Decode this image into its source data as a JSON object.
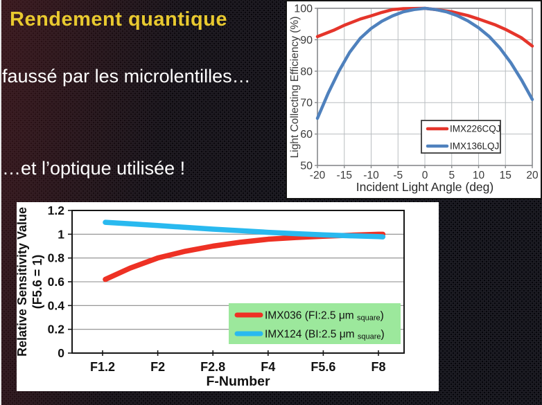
{
  "slide": {
    "title": "Rendement quantique",
    "title_color": "#e8c92f",
    "line1": "faussé par les microlentilles…",
    "line2": "…et l’optique utilisée !",
    "text_color": "#ffffff"
  },
  "chart_data": [
    {
      "id": "light-collecting-efficiency",
      "type": "line",
      "xlabel": "Incident Light Angle (deg)",
      "ylabel": "Light Collecting Efficiency (%)",
      "xlim": [
        -20,
        20
      ],
      "ylim": [
        50,
        100
      ],
      "xtick_values": [
        -20,
        -15,
        -10,
        -5,
        0,
        5,
        10,
        15,
        20
      ],
      "xtick_labels": [
        "-20",
        "-15",
        "-10",
        "-5",
        "0",
        "5",
        "10",
        "15",
        "20"
      ],
      "ytick_values": [
        50,
        60,
        70,
        80,
        90,
        100
      ],
      "ytick_labels": [
        "50",
        "60",
        "70",
        "80",
        "90",
        "100"
      ],
      "grid": true,
      "grid_color": "#b9bdc0",
      "frame_color": "#87898c",
      "label_color": "#3b3b3b",
      "legend": {
        "position": "inside-bottom-right",
        "bg": "#ffffff",
        "border": "#3a3a3a"
      },
      "series": [
        {
          "name": "IMX226CQJ",
          "color": "#e5352b",
          "points": [
            [
              -20,
              91
            ],
            [
              -17,
              93
            ],
            [
              -15,
              94.6
            ],
            [
              -12,
              96.6
            ],
            [
              -10,
              97.6
            ],
            [
              -8,
              98.7
            ],
            [
              -6,
              99.6
            ],
            [
              -4,
              99.9
            ],
            [
              0,
              100
            ],
            [
              3,
              99.4
            ],
            [
              5,
              98.9
            ],
            [
              8,
              97.7
            ],
            [
              10,
              96.6
            ],
            [
              13,
              94.8
            ],
            [
              15,
              93.3
            ],
            [
              18,
              90.6
            ],
            [
              20,
              88
            ]
          ]
        },
        {
          "name": "IMX136LQJ",
          "color": "#4f81bd",
          "points": [
            [
              -20,
              65
            ],
            [
              -18,
              73
            ],
            [
              -16,
              80
            ],
            [
              -14,
              86
            ],
            [
              -12,
              90.5
            ],
            [
              -10,
              93.6
            ],
            [
              -8,
              95.9
            ],
            [
              -6,
              97.6
            ],
            [
              -4,
              98.9
            ],
            [
              -2,
              99.6
            ],
            [
              0,
              100
            ],
            [
              2,
              99.6
            ],
            [
              4,
              98.9
            ],
            [
              6,
              97.7
            ],
            [
              8,
              96
            ],
            [
              10,
              93.8
            ],
            [
              12,
              91
            ],
            [
              14,
              87.3
            ],
            [
              16,
              82.7
            ],
            [
              18,
              77.2
            ],
            [
              20,
              71
            ]
          ]
        }
      ]
    },
    {
      "id": "relative-sensitivity",
      "type": "line",
      "xlabel": "F-Number",
      "ylabel": "Relative Sensitivity Value (F5.6 = 1)",
      "ylabel_lines": [
        "Relative Sensitivity Value",
        "(F5.6 = 1)"
      ],
      "x_scale_note": "points use fractional index into xtick_labels",
      "xtick_labels": [
        "F1.2",
        "F2",
        "F2.8",
        "F4",
        "F5.6",
        "F8"
      ],
      "ylim": [
        0,
        1.2
      ],
      "ytick_values": [
        0,
        0.2,
        0.4,
        0.6,
        0.8,
        1,
        1.2
      ],
      "ytick_labels": [
        "0",
        "0.2",
        "0.4",
        "0.6",
        "0.8",
        "1",
        "1.2"
      ],
      "grid": "horizontal",
      "grid_color": "#8a8a8a",
      "frame_color": "#161616",
      "label_color": "#111111",
      "legend": {
        "position": "inside-bottom-right",
        "bg": "#9ce89c",
        "border": "none"
      },
      "series": [
        {
          "name": "IMX036 (FI:2.5 μm square)",
          "label_parts": [
            "IMX036 (FI:2.5 μm ",
            "square",
            ")"
          ],
          "color": "#ee3124",
          "points": [
            [
              0.05,
              0.62
            ],
            [
              0.5,
              0.715
            ],
            [
              1,
              0.8
            ],
            [
              1.5,
              0.857
            ],
            [
              2,
              0.9
            ],
            [
              2.5,
              0.933
            ],
            [
              3,
              0.958
            ],
            [
              3.5,
              0.972
            ],
            [
              4,
              0.983
            ],
            [
              4.5,
              0.992
            ],
            [
              5,
              1.0
            ],
            [
              5.08,
              1.0
            ]
          ]
        },
        {
          "name": "IMX124 (BI:2.5 μm square)",
          "label_parts": [
            "IMX124 (BI:2.5 μm ",
            "square",
            ")"
          ],
          "color": "#29b9ef",
          "points": [
            [
              0.05,
              1.1
            ],
            [
              0.5,
              1.088
            ],
            [
              1,
              1.073
            ],
            [
              1.5,
              1.058
            ],
            [
              2,
              1.043
            ],
            [
              2.5,
              1.03
            ],
            [
              3,
              1.016
            ],
            [
              3.5,
              1.005
            ],
            [
              4,
              0.995
            ],
            [
              4.5,
              0.987
            ],
            [
              5,
              0.98
            ],
            [
              5.08,
              0.978
            ]
          ]
        }
      ]
    }
  ]
}
